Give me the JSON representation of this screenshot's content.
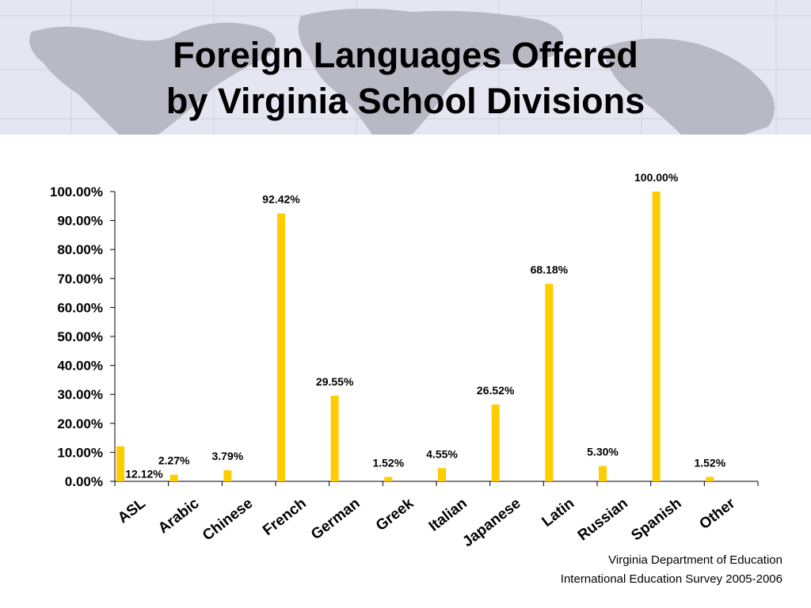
{
  "slide": {
    "title_line1": "Foreign Languages Offered",
    "title_line2": "by Virginia School Divisions",
    "source_line1": "Virginia Department of Education",
    "source_line2": "International Education Survey 2005-2006",
    "background_motif": "world-map"
  },
  "chart_data": {
    "type": "bar",
    "title": "",
    "xlabel": "",
    "ylabel": "",
    "categories": [
      "ASL",
      "Arabic",
      "Chinese",
      "French",
      "German",
      "Greek",
      "Italian",
      "Japanese",
      "Latin",
      "Russian",
      "Spanish",
      "Other"
    ],
    "values": [
      12.12,
      2.27,
      3.79,
      92.42,
      29.55,
      1.52,
      4.55,
      26.52,
      68.18,
      5.3,
      100.0,
      1.52
    ],
    "value_labels": [
      "12.12%",
      "2.27%",
      "3.79%",
      "92.42%",
      "29.55%",
      "1.52%",
      "4.55%",
      "26.52%",
      "68.18%",
      "5.30%",
      "100.00%",
      "1.52%"
    ],
    "ylim": [
      0,
      100
    ],
    "yticks": [
      "0.00%",
      "10.00%",
      "20.00%",
      "30.00%",
      "40.00%",
      "50.00%",
      "60.00%",
      "70.00%",
      "80.00%",
      "90.00%",
      "100.00%"
    ],
    "grid": false,
    "legend": "none",
    "bar_color": "#ffcc00"
  }
}
